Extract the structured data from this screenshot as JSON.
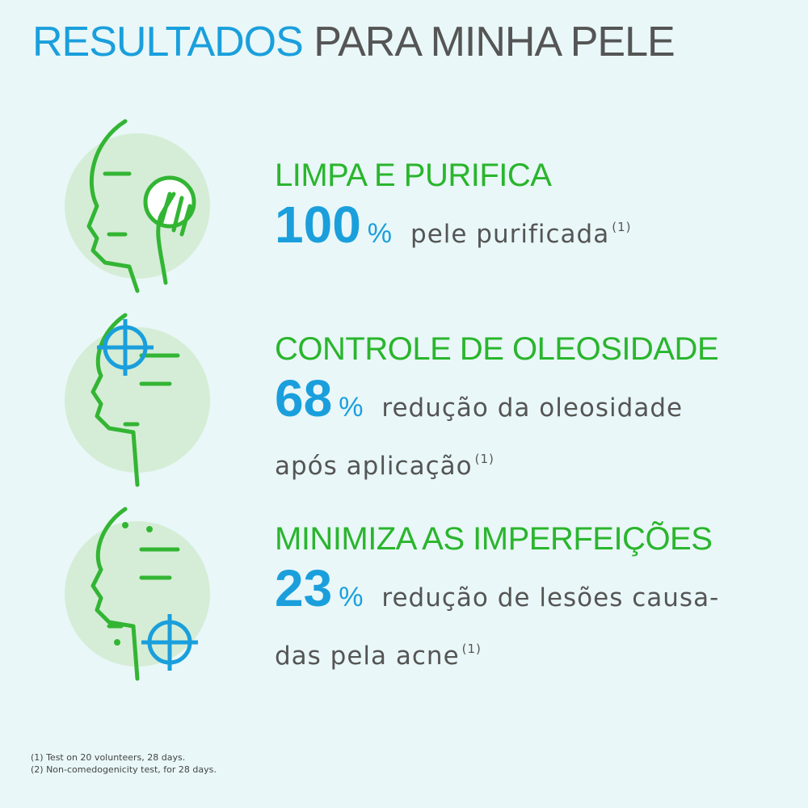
{
  "header": {
    "title_highlight": "RESULTADOS",
    "title_rest": "PARA MINHA PELE"
  },
  "items": [
    {
      "heading": "LIMPA E PURIFICA",
      "number": "100",
      "unit": "%",
      "lines": [
        "pele purificada"
      ],
      "note": "(1)"
    },
    {
      "heading": "CONTROLE DE OLEOSIDADE",
      "number": "68",
      "unit": "%",
      "lines": [
        "redução da oleosidade",
        "após aplicação"
      ],
      "note": "(1)"
    },
    {
      "heading": "MINIMIZA AS IMPERFEIÇÕES",
      "number": "23",
      "unit": "%",
      "lines": [
        "redução de lesões causa-",
        "das pela acne"
      ],
      "note": "(1)"
    }
  ],
  "footnotes": [
    "(1) Test on 20 volunteers, 28 days.",
    "(2) Non-comedogenicity test, for 28 days."
  ]
}
